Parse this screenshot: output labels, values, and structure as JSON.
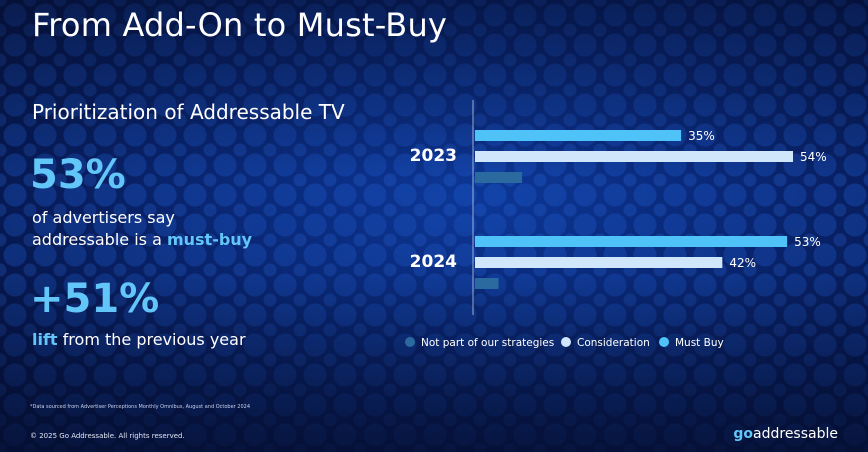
{
  "title": "From Add-On to Must-Buy",
  "subtitle": "Prioritization of Addressable TV",
  "stat1": {
    "value": "53%",
    "line1": "of advertisers say",
    "line2_pre": "addressable is a ",
    "line2_hl": "must-buy"
  },
  "stat2": {
    "value": "+51%",
    "hl": "lift",
    "rest": " from the previous year"
  },
  "footnote": "*Data sourced from Advertiser Perceptions Monthly Omnibus, August and October 2024",
  "copyright": "© 2025 Go Addressable. All rights reserved.",
  "logo": {
    "go": "go",
    "rest": "addressable"
  },
  "colors": {
    "must_buy": "#4fc3f7",
    "consideration": "#cfe6fb",
    "not_part": "#2a6a9e"
  },
  "chart_data": {
    "type": "bar",
    "orientation": "horizontal",
    "categories": [
      "2023",
      "2024"
    ],
    "series": [
      {
        "name": "Must Buy",
        "values": [
          35,
          53
        ],
        "labels": [
          "35%",
          "53%"
        ],
        "color": "#4fc3f7"
      },
      {
        "name": "Consideration",
        "values": [
          54,
          42
        ],
        "labels": [
          "54%",
          "42%"
        ],
        "color": "#cfe6fb"
      },
      {
        "name": "Not part of our strategies",
        "values": [
          8,
          4
        ],
        "labels": [
          "",
          ""
        ],
        "color": "#2a6a9e"
      }
    ],
    "legend": [
      "Not part of our strategies",
      "Consideration",
      "Must Buy"
    ],
    "legend_placement": "bottom",
    "xlim": [
      0,
      54
    ],
    "grid": false
  }
}
